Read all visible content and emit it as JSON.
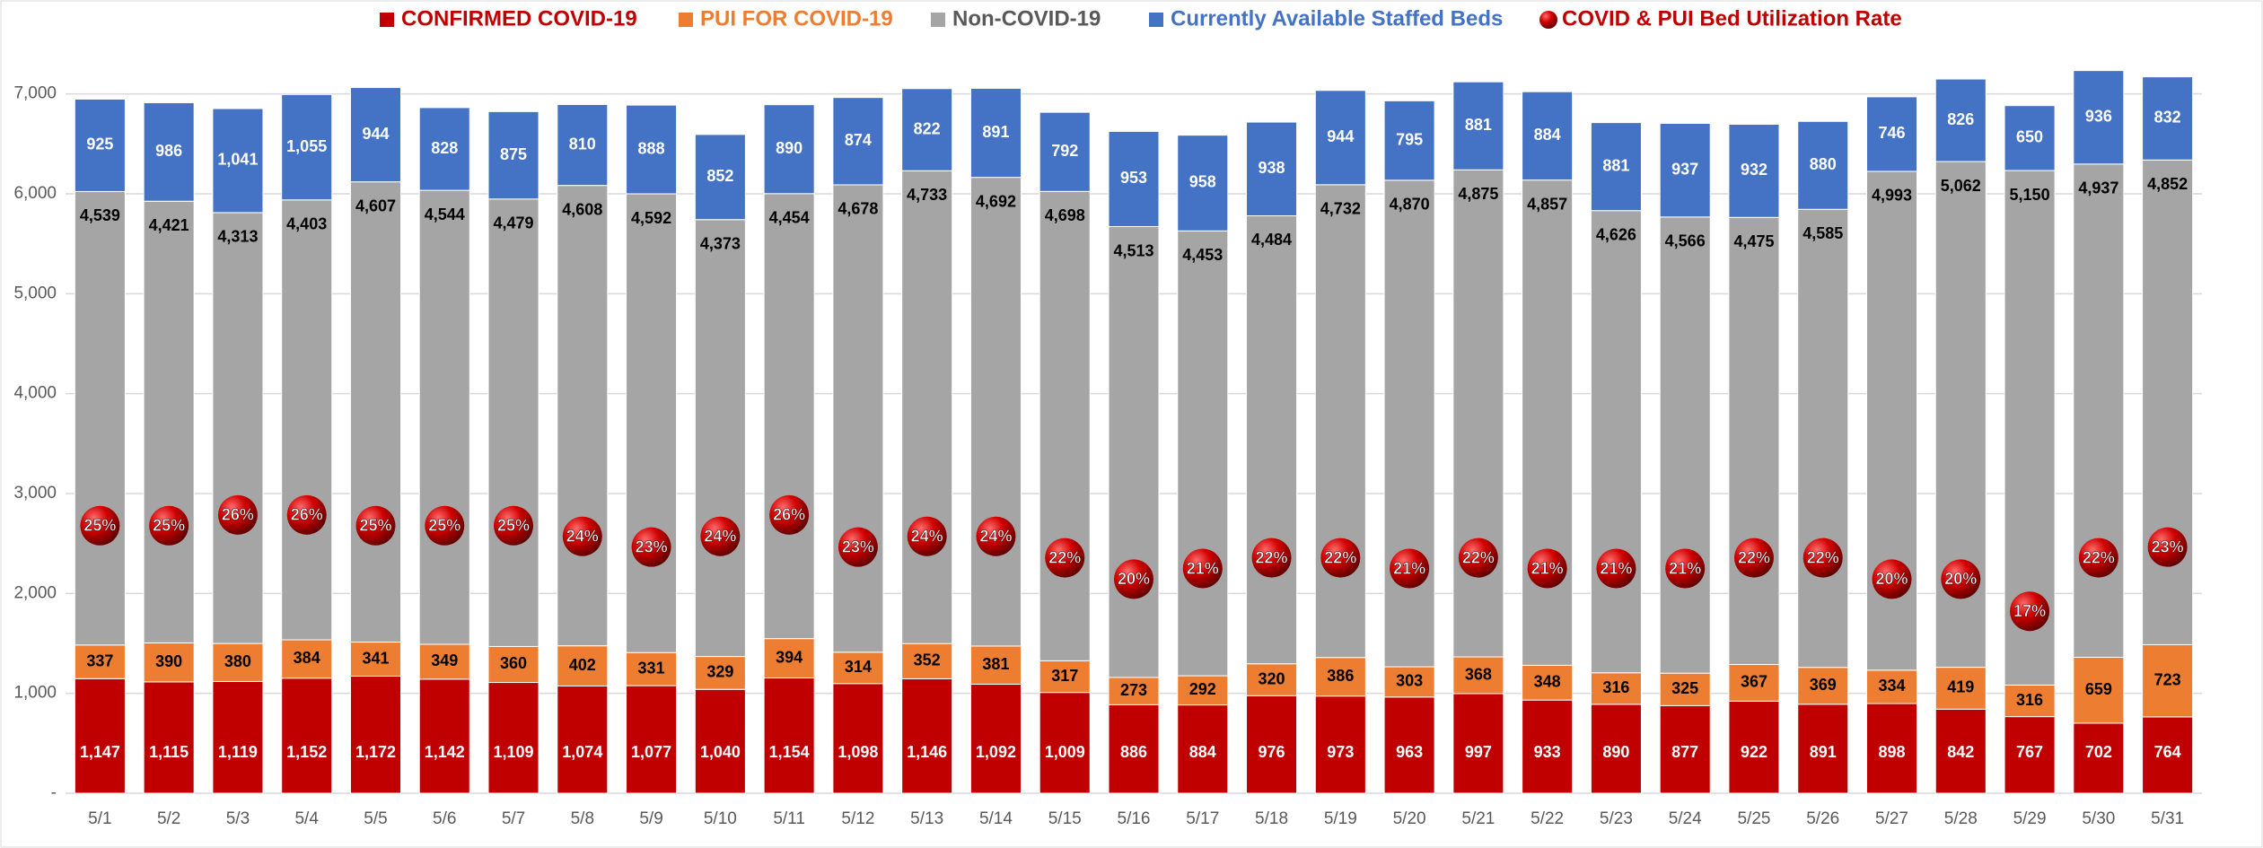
{
  "chart_data": {
    "type": "bar",
    "stacked": true,
    "grid": true,
    "categories": [
      "5/1",
      "5/2",
      "5/3",
      "5/4",
      "5/5",
      "5/6",
      "5/7",
      "5/8",
      "5/9",
      "5/10",
      "5/11",
      "5/12",
      "5/13",
      "5/14",
      "5/15",
      "5/16",
      "5/17",
      "5/18",
      "5/19",
      "5/20",
      "5/21",
      "5/22",
      "5/23",
      "5/24",
      "5/25",
      "5/26",
      "5/27",
      "5/28",
      "5/29",
      "5/30",
      "5/31"
    ],
    "ylim": [
      0,
      7500
    ],
    "yticks": [
      {
        "value": 0,
        "label": "-"
      },
      {
        "value": 1000,
        "label": "1,000"
      },
      {
        "value": 2000,
        "label": "2,000"
      },
      {
        "value": 3000,
        "label": "3,000"
      },
      {
        "value": 4000,
        "label": "4,000"
      },
      {
        "value": 5000,
        "label": "5,000"
      },
      {
        "value": 6000,
        "label": "6,000"
      },
      {
        "value": 7000,
        "label": "7,000"
      }
    ],
    "y2lim": [
      0,
      70
    ],
    "legend": "top",
    "series": [
      {
        "name": "CONFIRMED COVID-19",
        "color": "#c00000",
        "values": [
          1147,
          1115,
          1119,
          1152,
          1172,
          1142,
          1109,
          1074,
          1077,
          1040,
          1154,
          1098,
          1146,
          1092,
          1009,
          886,
          884,
          976,
          973,
          963,
          997,
          933,
          890,
          877,
          922,
          891,
          898,
          842,
          767,
          702,
          764
        ],
        "value_labels": [
          "1,147",
          "1,115",
          "1,119",
          "1,152",
          "1,172",
          "1,142",
          "1,109",
          "1,074",
          "1,077",
          "1,040",
          "1,154",
          "1,098",
          "1,146",
          "1,092",
          "1,009",
          "886",
          "884",
          "976",
          "973",
          "963",
          "997",
          "933",
          "890",
          "877",
          "922",
          "891",
          "898",
          "842",
          "767",
          "702",
          "764"
        ]
      },
      {
        "name": "PUI FOR COVID-19",
        "color": "#ed7d31",
        "values": [
          337,
          390,
          380,
          384,
          341,
          349,
          360,
          402,
          331,
          329,
          394,
          314,
          352,
          381,
          317,
          273,
          292,
          320,
          386,
          303,
          368,
          348,
          316,
          325,
          367,
          369,
          334,
          419,
          316,
          659,
          723
        ],
        "value_labels": [
          "337",
          "390",
          "380",
          "384",
          "341",
          "349",
          "360",
          "402",
          "331",
          "329",
          "394",
          "314",
          "352",
          "381",
          "317",
          "273",
          "292",
          "320",
          "386",
          "303",
          "368",
          "348",
          "316",
          "325",
          "367",
          "369",
          "334",
          "419",
          "316",
          "659",
          "723"
        ]
      },
      {
        "name": "Non-COVID-19",
        "color": "#a5a5a5",
        "values": [
          4539,
          4421,
          4313,
          4403,
          4607,
          4544,
          4479,
          4608,
          4592,
          4373,
          4454,
          4678,
          4733,
          4692,
          4698,
          4513,
          4453,
          4484,
          4732,
          4870,
          4875,
          4857,
          4626,
          4566,
          4475,
          4585,
          4993,
          5062,
          5150,
          4937,
          4852
        ],
        "value_labels": [
          "4,539",
          "4,421",
          "4,313",
          "4,403",
          "4,607",
          "4,544",
          "4,479",
          "4,608",
          "4,592",
          "4,373",
          "4,454",
          "4,678",
          "4,733",
          "4,692",
          "4,698",
          "4,513",
          "4,453",
          "4,484",
          "4,732",
          "4,870",
          "4,875",
          "4,857",
          "4,626",
          "4,566",
          "4,475",
          "4,585",
          "4,993",
          "5,062",
          "5,150",
          "4,937",
          "4,852"
        ]
      },
      {
        "name": "Currently Available Staffed Beds",
        "color": "#4472c4",
        "values": [
          925,
          986,
          1041,
          1055,
          944,
          828,
          875,
          810,
          888,
          852,
          890,
          874,
          822,
          891,
          792,
          953,
          958,
          938,
          944,
          795,
          881,
          884,
          881,
          937,
          932,
          880,
          746,
          826,
          650,
          936,
          832
        ],
        "value_labels": [
          "925",
          "986",
          "1,041",
          "1,055",
          "944",
          "828",
          "875",
          "810",
          "888",
          "852",
          "890",
          "874",
          "822",
          "891",
          "792",
          "953",
          "958",
          "938",
          "944",
          "795",
          "881",
          "884",
          "881",
          "937",
          "932",
          "880",
          "746",
          "826",
          "650",
          "936",
          "832"
        ]
      },
      {
        "name": "COVID & PUI Bed Utilization Rate",
        "color": "#c00000",
        "axis": "y2",
        "values": [
          25,
          25,
          26,
          26,
          25,
          25,
          25,
          24,
          23,
          24,
          26,
          23,
          24,
          24,
          22,
          20,
          21,
          22,
          22,
          21,
          22,
          21,
          21,
          21,
          22,
          22,
          20,
          20,
          17,
          22,
          23
        ],
        "value_labels": [
          "25%",
          "25%",
          "26%",
          "26%",
          "25%",
          "25%",
          "25%",
          "24%",
          "23%",
          "24%",
          "26%",
          "23%",
          "24%",
          "24%",
          "22%",
          "20%",
          "21%",
          "22%",
          "22%",
          "21%",
          "22%",
          "21%",
          "21%",
          "21%",
          "22%",
          "22%",
          "20%",
          "20%",
          "17%",
          "22%",
          "23%"
        ]
      }
    ]
  }
}
